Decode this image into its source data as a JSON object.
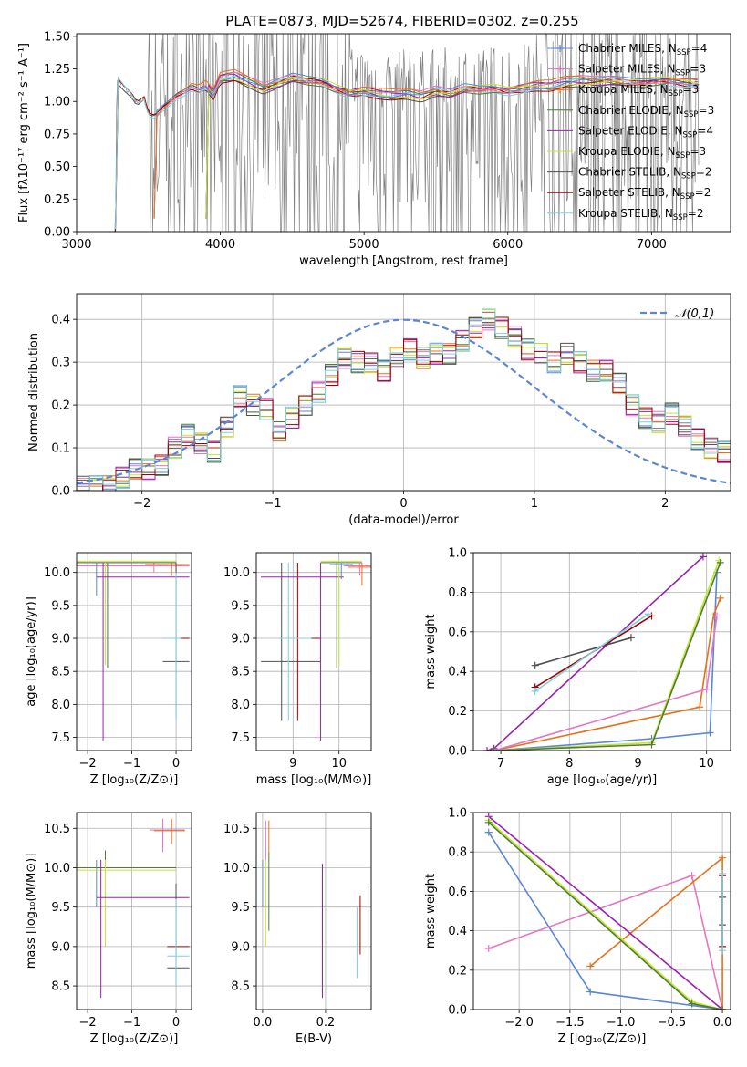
{
  "title": "PLATE=0873, MJD=52674, FIBERID=0302, z=0.255",
  "colors": {
    "chabrier_miles": "#5b86d8",
    "salpeter_miles": "#e377c2",
    "kroupa_miles": "#e8701a",
    "chabrier_elodie": "#4f7a3a",
    "salpeter_elodie": "#9b1fb0",
    "kroupa_elodie": "#c4e82a",
    "chabrier_stelib": "#505050",
    "salpeter_stelib": "#a00000",
    "kroupa_stelib": "#7fd0dc",
    "data": "#808080"
  },
  "chart_data": [
    {
      "id": "spectrum",
      "type": "line",
      "xlabel": "wavelength [Angstrom, rest frame]",
      "ylabel": "Flux [fλ10⁻¹⁷ erg cm⁻² s⁻¹ A⁻¹]",
      "xlim": [
        3000,
        7550
      ],
      "ylim": [
        0,
        1.52
      ],
      "xticks": [
        "3000",
        "4000",
        "5000",
        "6000",
        "7000"
      ],
      "yticks": [
        "0.00",
        "0.25",
        "0.50",
        "0.75",
        "1.00",
        "1.25",
        "1.50"
      ],
      "grid": false,
      "legend_position": "upper-right",
      "legend": [
        {
          "label": "Chabrier MILES, N_SSP=4",
          "color_key": "chabrier_miles",
          "marker": true
        },
        {
          "label": "Salpeter MILES, N_SSP=3",
          "color_key": "salpeter_miles",
          "marker": true
        },
        {
          "label": "Kroupa MILES, N_SSP=3",
          "color_key": "kroupa_miles",
          "marker": true
        },
        {
          "label": "Chabrier ELODIE, N_SSP=3",
          "color_key": "chabrier_elodie",
          "marker": false
        },
        {
          "label": "Salpeter ELODIE, N_SSP=4",
          "color_key": "salpeter_elodie",
          "marker": false
        },
        {
          "label": "Kroupa ELODIE, N_SSP=3",
          "color_key": "kroupa_elodie",
          "marker": false
        },
        {
          "label": "Chabrier STELIB, N_SSP=2",
          "color_key": "chabrier_stelib",
          "marker": false
        },
        {
          "label": "Salpeter STELIB, N_SSP=2",
          "color_key": "salpeter_stelib",
          "marker": false
        },
        {
          "label": "Kroupa STELIB, N_SSP=2",
          "color_key": "kroupa_stelib",
          "marker": false
        }
      ],
      "model_curve": [
        [
          3270,
          0
        ],
        [
          3280,
          1.18
        ],
        [
          3320,
          1.12
        ],
        [
          3380,
          1.05
        ],
        [
          3420,
          0.98
        ],
        [
          3470,
          1.02
        ],
        [
          3500,
          0.9
        ],
        [
          3540,
          0.88
        ],
        [
          3600,
          0.95
        ],
        [
          3650,
          1.0
        ],
        [
          3700,
          1.05
        ],
        [
          3750,
          1.08
        ],
        [
          3800,
          1.12
        ],
        [
          3850,
          1.1
        ],
        [
          3900,
          1.13
        ],
        [
          3950,
          1.05
        ],
        [
          4000,
          1.18
        ],
        [
          4100,
          1.2
        ],
        [
          4200,
          1.15
        ],
        [
          4300,
          1.1
        ],
        [
          4400,
          1.14
        ],
        [
          4500,
          1.18
        ],
        [
          4600,
          1.16
        ],
        [
          4700,
          1.15
        ],
        [
          4800,
          1.1
        ],
        [
          4900,
          1.06
        ],
        [
          5000,
          1.08
        ],
        [
          5100,
          1.06
        ],
        [
          5200,
          1.05
        ],
        [
          5300,
          1.06
        ],
        [
          5400,
          1.04
        ],
        [
          5500,
          1.08
        ],
        [
          5600,
          1.06
        ],
        [
          5700,
          1.1
        ],
        [
          5800,
          1.09
        ],
        [
          5900,
          1.1
        ],
        [
          6000,
          1.08
        ],
        [
          6100,
          1.1
        ],
        [
          6200,
          1.12
        ],
        [
          6300,
          1.12
        ],
        [
          6400,
          1.15
        ],
        [
          6500,
          1.16
        ],
        [
          6600,
          1.15
        ],
        [
          6700,
          1.16
        ],
        [
          6800,
          1.15
        ],
        [
          6900,
          1.14
        ],
        [
          7000,
          1.15
        ],
        [
          7100,
          1.16
        ],
        [
          7200,
          1.15
        ],
        [
          7300,
          1.14
        ]
      ],
      "data_range": [
        3200,
        7330
      ],
      "data_noise_start": 3500
    },
    {
      "id": "residual_histogram",
      "type": "bar",
      "xlabel": "(data-model)/error",
      "ylabel": "Normed distribution",
      "xlim": [
        -2.5,
        2.5
      ],
      "ylim": [
        0,
        0.46
      ],
      "xticks": [
        "−2",
        "−1",
        "0",
        "1",
        "2"
      ],
      "yticks": [
        "0.0",
        "0.1",
        "0.2",
        "0.3",
        "0.4"
      ],
      "grid": true,
      "legend": [
        {
          "label": "𝒩(0,1)",
          "color_key": "chabrier_miles",
          "dashed": true
        }
      ],
      "bin_edges_start": -2.5,
      "bin_width": 0.1,
      "reference_values": [
        0.01,
        0.01,
        0.01,
        0.03,
        0.05,
        0.05,
        0.06,
        0.1,
        0.13,
        0.11,
        0.09,
        0.15,
        0.22,
        0.2,
        0.19,
        0.14,
        0.17,
        0.2,
        0.23,
        0.27,
        0.31,
        0.3,
        0.3,
        0.28,
        0.31,
        0.33,
        0.31,
        0.32,
        0.32,
        0.35,
        0.38,
        0.4,
        0.38,
        0.36,
        0.33,
        0.32,
        0.3,
        0.32,
        0.3,
        0.28,
        0.28,
        0.25,
        0.2,
        0.17,
        0.16,
        0.18,
        0.15,
        0.12,
        0.1,
        0.09,
        0.07,
        0.06,
        0.05
      ]
    },
    {
      "id": "age_vs_Z",
      "type": "scatter",
      "xlabel": "Z [log₁₀(Z/Z⊙)]",
      "ylabel": "age  [log₁₀(age/yr)]",
      "xlim": [
        -2.25,
        0.35
      ],
      "ylim": [
        7.3,
        10.3
      ],
      "xticks": [
        "−2",
        "−1",
        "0"
      ],
      "yticks": [
        "7.5",
        "8.0",
        "8.5",
        "9.0",
        "9.5",
        "10.0"
      ],
      "grid": true
    },
    {
      "id": "age_vs_mass",
      "type": "scatter",
      "xlabel": "mass [log₁₀(M/M⊙)]",
      "xlim": [
        8.2,
        10.7
      ],
      "ylim": [
        7.3,
        10.3
      ],
      "xticks": [
        "9",
        "10"
      ],
      "yticks": [
        "7.5",
        "8.0",
        "8.5",
        "9.0",
        "9.5",
        "10.0"
      ],
      "grid": true
    },
    {
      "id": "massweight_vs_age",
      "type": "line",
      "xlabel": "age  [log₁₀(age/yr)]",
      "ylabel": "mass weight",
      "xlim": [
        6.6,
        10.35
      ],
      "ylim": [
        0,
        1.0
      ],
      "xticks": [
        "7",
        "8",
        "9",
        "10"
      ],
      "yticks": [
        "0.0",
        "0.2",
        "0.4",
        "0.6",
        "0.8",
        "1.0"
      ],
      "grid": true,
      "series": [
        {
          "color_key": "chabrier_miles",
          "points": [
            [
              6.9,
              0.0
            ],
            [
              9.2,
              0.06
            ],
            [
              10.05,
              0.09
            ],
            [
              10.15,
              0.9
            ]
          ]
        },
        {
          "color_key": "kroupa_miles",
          "points": [
            [
              6.9,
              0.0
            ],
            [
              9.9,
              0.22
            ],
            [
              10.1,
              0.68
            ],
            [
              10.2,
              0.77
            ]
          ]
        },
        {
          "color_key": "salpeter_miles",
          "points": [
            [
              6.9,
              0.0
            ],
            [
              10.0,
              0.31
            ],
            [
              10.15,
              0.68
            ]
          ]
        },
        {
          "color_key": "salpeter_elodie",
          "points": [
            [
              6.8,
              0.0
            ],
            [
              6.9,
              0.01
            ],
            [
              9.95,
              0.98
            ]
          ]
        },
        {
          "color_key": "kroupa_elodie",
          "points": [
            [
              6.9,
              0.0
            ],
            [
              9.2,
              0.04
            ],
            [
              10.18,
              0.96
            ]
          ]
        },
        {
          "color_key": "chabrier_elodie",
          "points": [
            [
              6.9,
              0.0
            ],
            [
              9.2,
              0.03
            ],
            [
              10.2,
              0.95
            ]
          ]
        },
        {
          "color_key": "chabrier_stelib",
          "points": [
            [
              7.5,
              0.43
            ],
            [
              8.9,
              0.57
            ]
          ]
        },
        {
          "color_key": "salpeter_stelib",
          "points": [
            [
              7.5,
              0.32
            ],
            [
              9.2,
              0.68
            ]
          ]
        },
        {
          "color_key": "kroupa_stelib",
          "points": [
            [
              7.5,
              0.3
            ],
            [
              9.15,
              0.69
            ]
          ]
        }
      ]
    },
    {
      "id": "mass_vs_Z",
      "type": "scatter",
      "xlabel": "Z [log₁₀(Z/Z⊙)]",
      "ylabel": "mass [log₁₀(M/M⊙)]",
      "xlim": [
        -2.25,
        0.35
      ],
      "ylim": [
        8.2,
        10.7
      ],
      "xticks": [
        "−2",
        "−1",
        "0"
      ],
      "yticks": [
        "8.5",
        "9.0",
        "9.5",
        "10.0",
        "10.5"
      ],
      "grid": true
    },
    {
      "id": "mass_vs_ebv",
      "type": "scatter",
      "xlabel": "E(B-V)",
      "xlim": [
        -0.02,
        0.345
      ],
      "ylim": [
        8.2,
        10.7
      ],
      "xticks": [
        "0.0",
        "0.2"
      ],
      "yticks": [
        "8.5",
        "9.0",
        "9.5",
        "10.0",
        "10.5"
      ],
      "grid": true
    },
    {
      "id": "massweight_vs_Z",
      "type": "line",
      "xlabel": "Z [log₁₀(Z/Z⊙)]",
      "ylabel": "mass weight",
      "xlim": [
        -2.45,
        0.08
      ],
      "ylim": [
        0,
        1.0
      ],
      "xticks": [
        "−2.0",
        "−1.5",
        "−1.0",
        "−0.5",
        "0.0"
      ],
      "yticks": [
        "0.0",
        "0.2",
        "0.4",
        "0.6",
        "0.8",
        "1.0"
      ],
      "grid": true,
      "series": [
        {
          "color_key": "chabrier_miles",
          "points": [
            [
              -2.3,
              0.9
            ],
            [
              -1.3,
              0.09
            ],
            [
              0.0,
              0.0
            ]
          ]
        },
        {
          "color_key": "salpeter_miles",
          "points": [
            [
              -2.3,
              0.31
            ],
            [
              -0.3,
              0.68
            ],
            [
              0.0,
              0.0
            ]
          ]
        },
        {
          "color_key": "kroupa_miles",
          "points": [
            [
              -1.3,
              0.22
            ],
            [
              0.0,
              0.77
            ],
            [
              0.0,
              0.0
            ]
          ]
        },
        {
          "color_key": "salpeter_elodie",
          "points": [
            [
              -2.3,
              0.98
            ],
            [
              0.0,
              0.0
            ]
          ]
        },
        {
          "color_key": "kroupa_elodie",
          "points": [
            [
              -2.3,
              0.96
            ],
            [
              -0.3,
              0.04
            ],
            [
              0.0,
              0.0
            ]
          ]
        },
        {
          "color_key": "chabrier_elodie",
          "points": [
            [
              -2.3,
              0.95
            ],
            [
              -0.3,
              0.03
            ],
            [
              0.0,
              0.0
            ]
          ]
        },
        {
          "color_key": "chabrier_stelib",
          "points": [
            [
              0.0,
              0.43
            ],
            [
              0.0,
              0.57
            ]
          ]
        },
        {
          "color_key": "salpeter_stelib",
          "points": [
            [
              0.0,
              0.32
            ],
            [
              0.0,
              0.68
            ]
          ]
        },
        {
          "color_key": "kroupa_stelib",
          "points": [
            [
              0.0,
              0.3
            ],
            [
              0.0,
              0.69
            ]
          ]
        }
      ]
    }
  ]
}
